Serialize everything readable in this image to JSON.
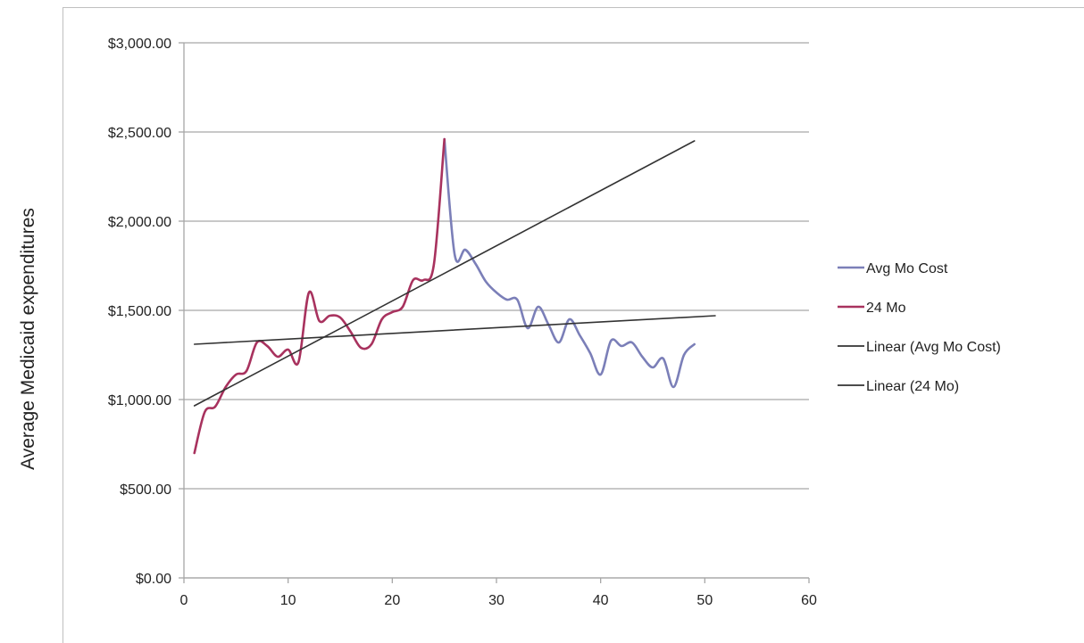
{
  "chart_data": {
    "type": "line",
    "title": "",
    "xlabel": "",
    "ylabel": "Average Medicaid expenditures",
    "xlim": [
      0,
      60
    ],
    "ylim": [
      0,
      3000
    ],
    "x_ticks": [
      "0",
      "10",
      "20",
      "30",
      "40",
      "50",
      "60"
    ],
    "y_ticks": [
      "$0.00",
      "$500.00",
      "$1,000.00",
      "$1,500.00",
      "$2,000.00",
      "$2,500.00",
      "$3,000.00"
    ],
    "grid": "horizontal",
    "legend_position": "right",
    "series": [
      {
        "name": "Avg Mo Cost",
        "color": "#7b7fb8",
        "x": [
          25,
          26,
          27,
          28,
          29,
          30,
          31,
          32,
          33,
          34,
          35,
          36,
          37,
          38,
          39,
          40,
          41,
          42,
          43,
          44,
          45,
          46,
          47,
          48,
          49
        ],
        "values": [
          2460,
          1810,
          1840,
          1760,
          1660,
          1600,
          1560,
          1560,
          1400,
          1520,
          1420,
          1320,
          1450,
          1360,
          1260,
          1140,
          1330,
          1300,
          1320,
          1240,
          1180,
          1230,
          1070,
          1250,
          1310
        ]
      },
      {
        "name": "24 Mo",
        "color": "#a8325e",
        "x": [
          1,
          2,
          3,
          4,
          5,
          6,
          7,
          8,
          9,
          10,
          11,
          12,
          13,
          14,
          15,
          16,
          17,
          18,
          19,
          20,
          21,
          22,
          23,
          24,
          25
        ],
        "values": [
          700,
          930,
          960,
          1070,
          1140,
          1160,
          1320,
          1300,
          1240,
          1280,
          1210,
          1600,
          1440,
          1470,
          1460,
          1380,
          1290,
          1310,
          1450,
          1490,
          1520,
          1670,
          1670,
          1760,
          2460
        ]
      },
      {
        "name": "Linear (Avg Mo Cost)",
        "color": "#333333",
        "x": [
          1,
          49
        ],
        "values": [
          965,
          2450
        ]
      },
      {
        "name": "Linear (24 Mo)",
        "color": "#333333",
        "x": [
          1,
          51
        ],
        "values": [
          1310,
          1470
        ]
      }
    ]
  }
}
